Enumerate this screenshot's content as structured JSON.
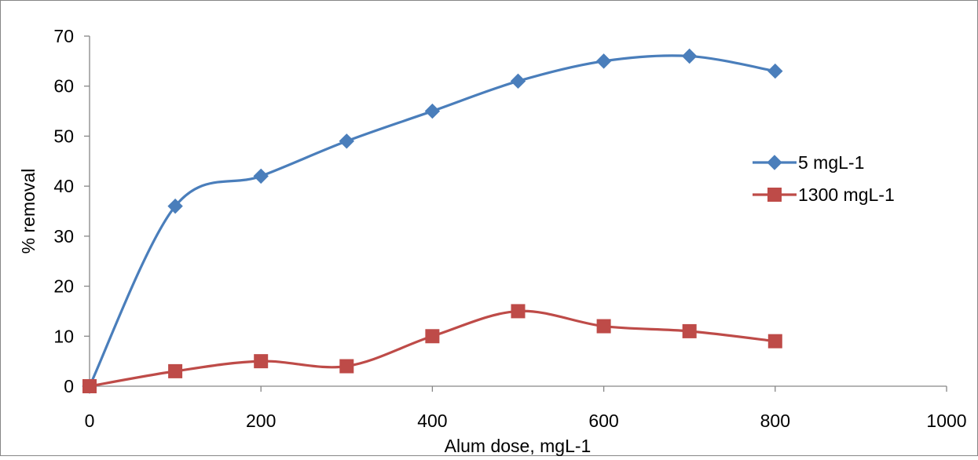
{
  "chart_data": {
    "type": "line",
    "title": "",
    "xlabel": "Alum dose, mgL-1",
    "ylabel": "% removal",
    "xlim": [
      0,
      1000
    ],
    "ylim": [
      0,
      70
    ],
    "x_ticks": [
      0,
      200,
      400,
      600,
      800,
      1000
    ],
    "y_ticks": [
      0,
      10,
      20,
      30,
      40,
      50,
      60,
      70
    ],
    "x_tick_labels": [
      "0",
      "200",
      "400",
      "600",
      "800",
      "1000"
    ],
    "y_tick_labels": [
      "0",
      "10",
      "20",
      "30",
      "40",
      "50",
      "60",
      "70"
    ],
    "grid": false,
    "smooth": true,
    "legend_position": "right",
    "x": [
      0,
      100,
      200,
      300,
      400,
      500,
      600,
      700,
      800
    ],
    "series": [
      {
        "name": "5 mgL-1",
        "marker": "diamond",
        "color": "#4a7ebb",
        "values": [
          0,
          36,
          42,
          49,
          55,
          61,
          65,
          66,
          63
        ]
      },
      {
        "name": "1300 mgL-1",
        "marker": "square",
        "color": "#be4b48",
        "values": [
          0,
          3,
          5,
          4,
          10,
          15,
          12,
          11,
          9
        ]
      }
    ]
  }
}
